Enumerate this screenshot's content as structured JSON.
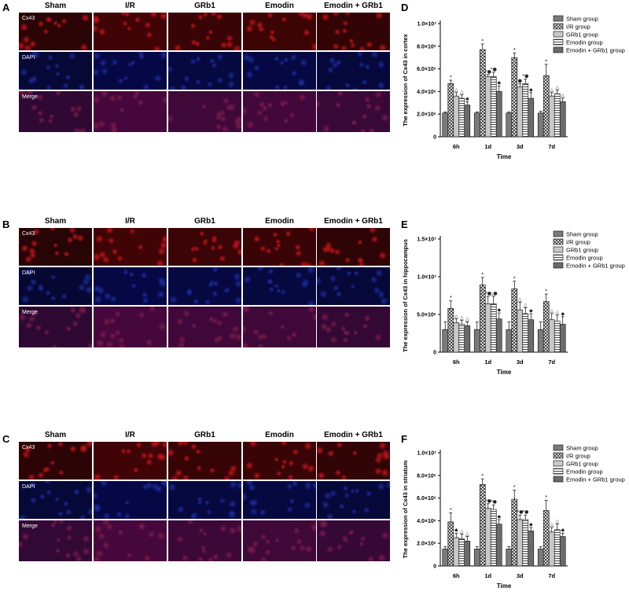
{
  "panels": [
    {
      "letter": "A",
      "headers": [
        "Sham",
        "I/R",
        "GRb1",
        "Emodin",
        "Emodin + GRb1"
      ],
      "rows": [
        "Cx43",
        "DAPI",
        "Merge"
      ]
    },
    {
      "letter": "B",
      "headers": [
        "Sham",
        "I/R",
        "GRb1",
        "Emodin",
        "Emodin + GRb1"
      ],
      "rows": [
        "Cx43",
        "DAPI",
        "Merge"
      ]
    },
    {
      "letter": "C",
      "headers": [
        "Sham",
        "I/R",
        "GRb1",
        "Emodin",
        "Emodin + GRb1"
      ],
      "rows": [
        "Cx43",
        "DAPI",
        "Merge"
      ]
    }
  ],
  "colors": {
    "cx43": "#c0141a",
    "dapi": "#1c2a9a",
    "merge": "#7a1a4a",
    "bar_stroke": "#222222"
  },
  "chart_data": [
    {
      "letter": "D",
      "type": "bar",
      "ylabel": "The expression of Cx43 in cortex",
      "xlabel": "Time",
      "categories": [
        "6h",
        "1d",
        "3d",
        "7d"
      ],
      "ylim": [
        0,
        10000000
      ],
      "yticks": [
        0,
        2000000,
        4000000,
        6000000,
        8000000,
        10000000
      ],
      "ytick_labels": [
        "0",
        "2.0×10⁶",
        "4.0×10⁶",
        "6.0×10⁶",
        "8.0×10⁶",
        "1.0×10⁷"
      ],
      "series": [
        {
          "name": "Sham group",
          "values": [
            2100000,
            2100000,
            2100000,
            2100000
          ],
          "errors": [
            100000,
            100000,
            100000,
            150000
          ],
          "marks": [
            "",
            "",
            "",
            ""
          ]
        },
        {
          "name": "I/R group",
          "values": [
            4700000,
            7700000,
            7000000,
            5400000
          ],
          "errors": [
            300000,
            500000,
            400000,
            1000000
          ],
          "marks": [
            "*",
            "*",
            "*",
            "*"
          ]
        },
        {
          "name": "GRb1 group",
          "values": [
            3600000,
            5300000,
            4400000,
            3600000
          ],
          "errors": [
            300000,
            200000,
            300000,
            300000
          ],
          "marks": [
            "△",
            "*●",
            "●",
            "△"
          ]
        },
        {
          "name": "Emodin group",
          "values": [
            3400000,
            5300000,
            4700000,
            3800000
          ],
          "errors": [
            300000,
            400000,
            400000,
            300000
          ],
          "marks": [
            "△",
            "*●",
            "*●",
            "△"
          ]
        },
        {
          "name": "Emodin + GRb1 group",
          "values": [
            2800000,
            4000000,
            3400000,
            3100000
          ],
          "errors": [
            300000,
            500000,
            500000,
            300000
          ],
          "marks": [
            "◆",
            "◆",
            "◆",
            "△"
          ]
        }
      ]
    },
    {
      "letter": "E",
      "type": "bar",
      "ylabel": "The expression of Cx43 in hippocampus",
      "xlabel": "Time",
      "categories": [
        "6h",
        "1d",
        "3d",
        "7d"
      ],
      "ylim": [
        0,
        15000000
      ],
      "yticks": [
        0,
        5000000,
        10000000,
        15000000
      ],
      "ytick_labels": [
        "0",
        "5.0×10⁶",
        "1.0×10⁷",
        "1.5×10⁷"
      ],
      "series": [
        {
          "name": "Sham group",
          "values": [
            3000000,
            3000000,
            3000000,
            3000000
          ],
          "errors": [
            1000000,
            1000000,
            1000000,
            1000000
          ],
          "marks": [
            "",
            "",
            "",
            ""
          ]
        },
        {
          "name": "I/R group",
          "values": [
            5800000,
            8900000,
            8400000,
            6700000
          ],
          "errors": [
            1000000,
            1000000,
            1000000,
            1000000
          ],
          "marks": [
            "*",
            "*",
            "*",
            "*"
          ]
        },
        {
          "name": "GRb1 group",
          "values": [
            3900000,
            6400000,
            5600000,
            4300000
          ],
          "errors": [
            500000,
            1000000,
            1000000,
            800000
          ],
          "marks": [
            "△",
            "*●",
            "△",
            "△"
          ]
        },
        {
          "name": "Emodin group",
          "values": [
            3700000,
            6400000,
            5100000,
            4100000
          ],
          "errors": [
            500000,
            1000000,
            800000,
            800000
          ],
          "marks": [
            "△",
            "△●",
            "△",
            "△"
          ]
        },
        {
          "name": "Emodin + GRb1 group",
          "values": [
            3500000,
            4400000,
            4300000,
            3700000
          ],
          "errors": [
            500000,
            800000,
            800000,
            1000000
          ],
          "marks": [
            "△",
            "◆",
            "◆",
            "◆"
          ]
        }
      ]
    },
    {
      "letter": "F",
      "type": "bar",
      "ylabel": "The expression of Cx43 in striatum",
      "xlabel": "Time",
      "categories": [
        "6h",
        "1d",
        "3d",
        "7d"
      ],
      "ylim": [
        0,
        10000000
      ],
      "yticks": [
        0,
        2000000,
        4000000,
        6000000,
        8000000,
        10000000
      ],
      "ytick_labels": [
        "0",
        "2.0×10⁶",
        "4.0×10⁶",
        "6.0×10⁶",
        "8.0×10⁶",
        "1.0×10⁷"
      ],
      "series": [
        {
          "name": "Sham group",
          "values": [
            1500000,
            1500000,
            1500000,
            1500000
          ],
          "errors": [
            200000,
            200000,
            200000,
            200000
          ],
          "marks": [
            "",
            "",
            "",
            ""
          ]
        },
        {
          "name": "I/R group",
          "values": [
            3900000,
            7200000,
            5900000,
            4900000
          ],
          "errors": [
            800000,
            500000,
            800000,
            900000
          ],
          "marks": [
            "*",
            "*",
            "*",
            "*"
          ]
        },
        {
          "name": "GRb1 group",
          "values": [
            2500000,
            5100000,
            4100000,
            3000000
          ],
          "errors": [
            400000,
            400000,
            400000,
            400000
          ],
          "marks": [
            "◆",
            "*●",
            "*●",
            "△"
          ]
        },
        {
          "name": "Emodin group",
          "values": [
            2400000,
            5000000,
            4100000,
            3200000
          ],
          "errors": [
            400000,
            400000,
            400000,
            500000
          ],
          "marks": [
            "△",
            "*●",
            "*●",
            "△"
          ]
        },
        {
          "name": "Emodin + GRb1 group",
          "values": [
            2200000,
            3700000,
            3100000,
            2600000
          ],
          "errors": [
            400000,
            400000,
            300000,
            300000
          ],
          "marks": [
            "△",
            "◆",
            "◆",
            "◆"
          ]
        }
      ]
    }
  ]
}
